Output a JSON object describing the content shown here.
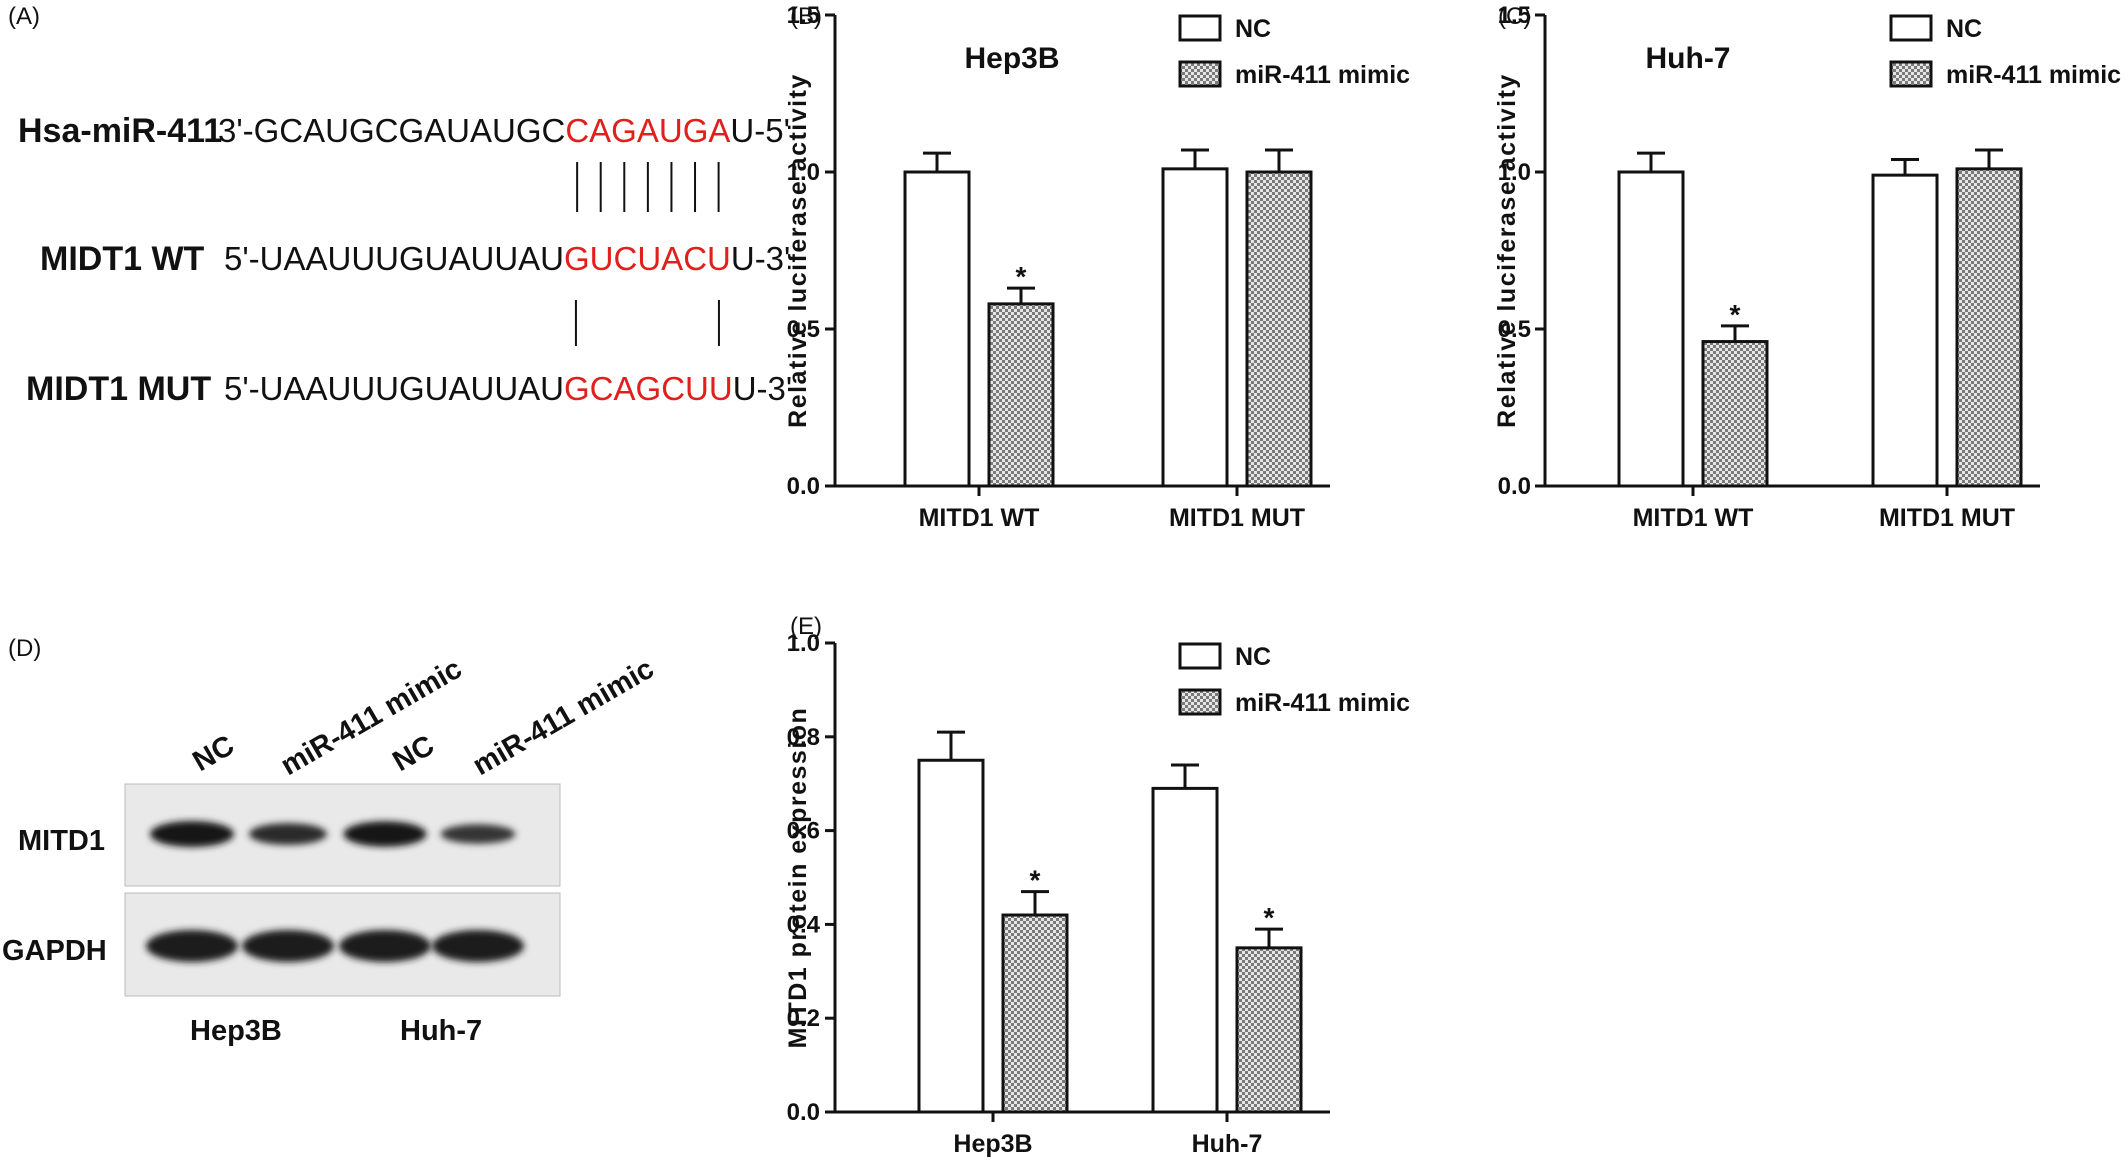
{
  "panel_labels": [
    "(A)",
    "(B)",
    "(C)",
    "(D)",
    "(E)"
  ],
  "panel_a": {
    "rows": [
      {
        "name": "Hsa-miR-411",
        "prefix": "3'-GCAUGCGAUAUGC",
        "highlight": "CAGAUGA",
        "suffix": "U-5'"
      },
      {
        "name": "MIDT1 WT",
        "prefix": "5'-UAAUUUGUAUUAU",
        "highlight": "GUCUACU",
        "suffix": "U-3'"
      },
      {
        "name": "MIDT1 MUT",
        "prefix": "5'-UAAUUUGUAUUAU",
        "highlight": "GCAGCUU",
        "suffix": "U-3'"
      }
    ],
    "pairing_lines_top": 7,
    "pairing_lines_bottom": 2,
    "highlight_color": "#e0201c"
  },
  "panel_d": {
    "lane_labels": [
      "NC",
      "miR-411 mimic",
      "NC",
      "miR-411 mimic"
    ],
    "row_labels": [
      "MITD1",
      "GAPDH"
    ],
    "cell_lines": [
      "Hep3B",
      "Huh-7"
    ],
    "mitd1_band_intensity": [
      1.0,
      0.65,
      0.95,
      0.45
    ],
    "gapdh_band_intensity": [
      1.0,
      1.0,
      1.0,
      1.0
    ]
  },
  "chart_data": [
    {
      "type": "bar",
      "title": "Hep3B",
      "ylabel": "Relative luciferase activity",
      "xlabel": "",
      "ylim": [
        0,
        1.5
      ],
      "yticks": [
        "0.0",
        "0.5",
        "1.0",
        "1.5"
      ],
      "categories": [
        "MITD1 WT",
        "MITD1 MUT"
      ],
      "legend_position": "top-right",
      "series": [
        {
          "name": "NC",
          "values": [
            1.0,
            1.01
          ],
          "errors": [
            0.06,
            0.06
          ],
          "pattern": "white"
        },
        {
          "name": "miR-411 mimic",
          "values": [
            0.58,
            1.0
          ],
          "errors": [
            0.05,
            0.07
          ],
          "pattern": "hatched"
        }
      ],
      "annotations": [
        {
          "category": 0,
          "series": 1,
          "text": "*"
        }
      ]
    },
    {
      "type": "bar",
      "title": "Huh-7",
      "ylabel": "Relative luciferase activity",
      "xlabel": "",
      "ylim": [
        0,
        1.5
      ],
      "yticks": [
        "0.0",
        "0.5",
        "1.0",
        "1.5"
      ],
      "categories": [
        "MITD1 WT",
        "MITD1 MUT"
      ],
      "legend_position": "top-right",
      "series": [
        {
          "name": "NC",
          "values": [
            1.0,
            0.99
          ],
          "errors": [
            0.06,
            0.05
          ],
          "pattern": "white"
        },
        {
          "name": "miR-411 mimic",
          "values": [
            0.46,
            1.01
          ],
          "errors": [
            0.05,
            0.06
          ],
          "pattern": "hatched"
        }
      ],
      "annotations": [
        {
          "category": 0,
          "series": 1,
          "text": "*"
        }
      ]
    },
    {
      "type": "bar",
      "title": "",
      "ylabel": "MITD1 protein expression",
      "xlabel": "",
      "ylim": [
        0,
        1.0
      ],
      "yticks": [
        "0.0",
        "0.2",
        "0.4",
        "0.6",
        "0.8",
        "1.0"
      ],
      "categories": [
        "Hep3B",
        "Huh-7"
      ],
      "legend_position": "top-right",
      "series": [
        {
          "name": "NC",
          "values": [
            0.75,
            0.69
          ],
          "errors": [
            0.06,
            0.05
          ],
          "pattern": "white"
        },
        {
          "name": "miR-411 mimic",
          "values": [
            0.42,
            0.35
          ],
          "errors": [
            0.05,
            0.04
          ],
          "pattern": "hatched"
        }
      ],
      "annotations": [
        {
          "category": 0,
          "series": 1,
          "text": "*"
        },
        {
          "category": 1,
          "series": 1,
          "text": "*"
        }
      ]
    }
  ]
}
